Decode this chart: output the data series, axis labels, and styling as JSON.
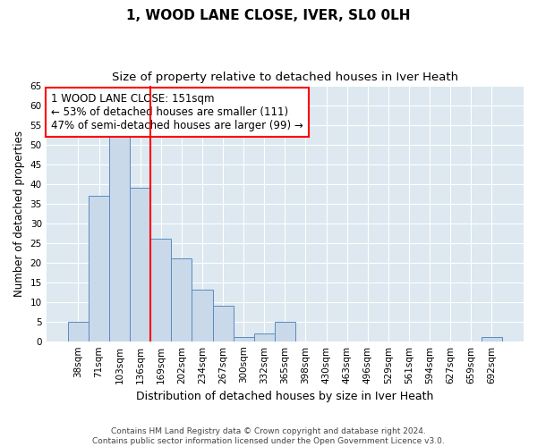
{
  "title": "1, WOOD LANE CLOSE, IVER, SL0 0LH",
  "subtitle": "Size of property relative to detached houses in Iver Heath",
  "xlabel": "Distribution of detached houses by size in Iver Heath",
  "ylabel": "Number of detached properties",
  "categories": [
    "38sqm",
    "71sqm",
    "103sqm",
    "136sqm",
    "169sqm",
    "202sqm",
    "234sqm",
    "267sqm",
    "300sqm",
    "332sqm",
    "365sqm",
    "398sqm",
    "430sqm",
    "463sqm",
    "496sqm",
    "529sqm",
    "561sqm",
    "594sqm",
    "627sqm",
    "659sqm",
    "692sqm"
  ],
  "values": [
    5,
    37,
    52,
    39,
    26,
    21,
    13,
    9,
    1,
    2,
    5,
    0,
    0,
    0,
    0,
    0,
    0,
    0,
    0,
    0,
    1
  ],
  "bar_color": "#c9d9ea",
  "bar_edge_color": "#5a8bbf",
  "vline_x": 3.5,
  "vline_color": "red",
  "annotation_line1": "1 WOOD LANE CLOSE: 151sqm",
  "annotation_line2": "← 53% of detached houses are smaller (111)",
  "annotation_line3": "47% of semi-detached houses are larger (99) →",
  "ylim": [
    0,
    65
  ],
  "yticks": [
    0,
    5,
    10,
    15,
    20,
    25,
    30,
    35,
    40,
    45,
    50,
    55,
    60,
    65
  ],
  "footer": "Contains HM Land Registry data © Crown copyright and database right 2024.\nContains public sector information licensed under the Open Government Licence v3.0.",
  "plot_bg_color": "#dde8f0",
  "title_fontsize": 11,
  "subtitle_fontsize": 9.5,
  "xlabel_fontsize": 9,
  "ylabel_fontsize": 8.5,
  "tick_fontsize": 7.5,
  "ann_fontsize": 8.5
}
